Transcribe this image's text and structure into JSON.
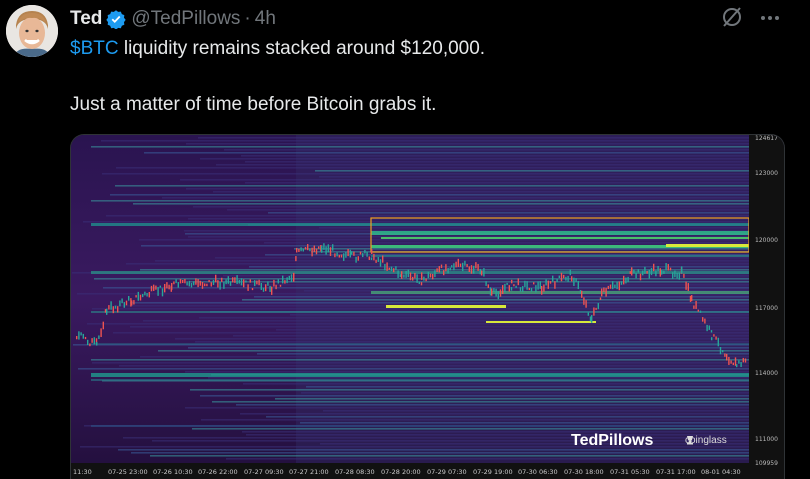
{
  "author": {
    "name": "Ted",
    "handle": "@TedPillows",
    "separator": "·",
    "time": "4h",
    "verified": true,
    "avatar_icon": "avatar-photo"
  },
  "tweet": {
    "cashtag": "$BTC",
    "line1_rest": " liquidity remains stacked around $120,000.",
    "line2": "Just a matter of time before Bitcoin grabs it."
  },
  "actions": {
    "grok_icon": "grok-icon",
    "more_icon": "more-icon"
  },
  "chart": {
    "watermark": "TedPillows",
    "brand": "coinglass",
    "y_ticks": [
      "124617",
      "123000",
      "120000",
      "117000",
      "114000",
      "111000",
      "109959"
    ],
    "x_ticks": [
      "11:30",
      "07-25 23:00",
      "07-26 10:30",
      "07-26 22:00",
      "07-27 09:30",
      "07-27 21:00",
      "07-28 08:30",
      "07-28 20:00",
      "07-29 07:30",
      "07-29 19:00",
      "07-30 06:30",
      "07-30 18:00",
      "07-31 05:30",
      "07-31 17:00",
      "08-01 04:30"
    ],
    "colors": {
      "bg": "#2a0f4a",
      "band_mid": "#1f8f8c",
      "band_hot": "#d8e83a",
      "candle_up": "#26a69a",
      "candle_down": "#ef5350",
      "highlight_box": "#f0a020"
    }
  }
}
